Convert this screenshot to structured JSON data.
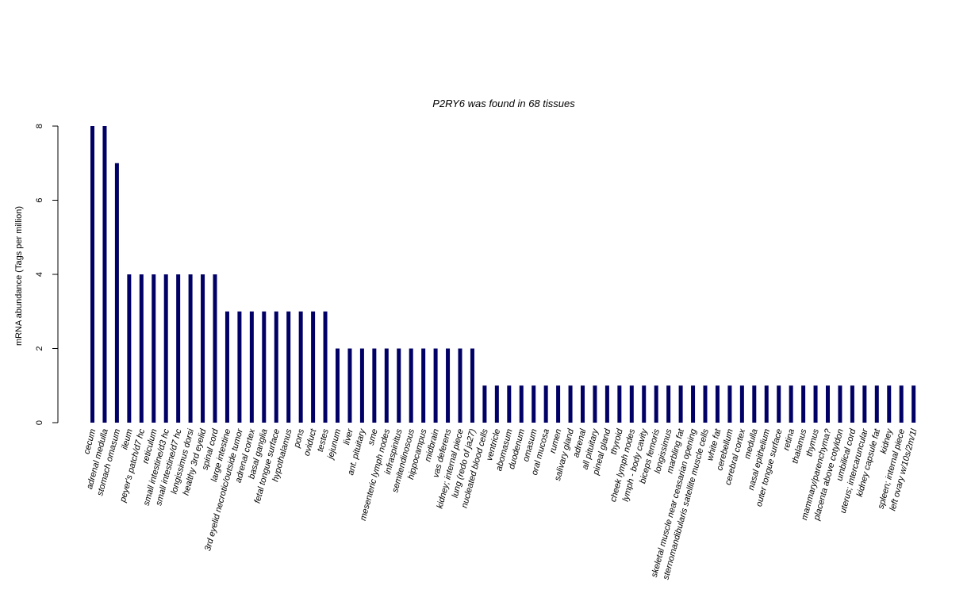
{
  "chart_data": {
    "type": "bar",
    "title": "P2RY6  was found in  68  tissues",
    "ylabel": "mRNA abundance (Tags per million)",
    "xlabel": "",
    "ylim": [
      0,
      8
    ],
    "yticks": [
      0,
      2,
      4,
      6,
      8
    ],
    "bar_color": "#000066",
    "categories": [
      "cecum",
      "adrenal medulla",
      "stomach omasum",
      "ileum",
      "peyer's patch/d7 hc",
      "reticulum",
      "small intestine/d3 hc",
      "small intestine/d7 hc",
      "longissimus dorsi",
      "healthy 3rd eyelid",
      "spinal cord",
      "large intestine",
      "3rd eyelid necrotic/outside tumor",
      "adrenal cortex",
      "basal ganglia",
      "fetal tongue surface",
      "hypothalamus",
      "pons",
      "oviduct",
      "testes",
      "jejunum",
      "liver",
      "ant. pituitary",
      "sme",
      "mesenteric lymph nodes",
      "infraspinitus",
      "semitendinosous",
      "hippocampus",
      "midbrain",
      "vas deferens",
      "kidney; internal piece",
      "lung (redo of ja27)",
      "nucleated blood cells",
      "ventricle",
      "abomasum",
      "duodenum",
      "omasum",
      "oral mucosa",
      "rumen",
      "salivary gland",
      "adrenal",
      "all pituitary",
      "pineal gland",
      "thyroid",
      "cheek lymph nodes",
      "lymph - body cavity",
      "biceps femoris",
      "longissimus",
      "marbling fat",
      "skeletal muscle near ceasarian opening",
      "sternomandibularis satellite muscle cells",
      "white fat",
      "cerebellum",
      "cerebral cortex",
      "medulla",
      "nasal epithelium",
      "outer tongue surface",
      "retina",
      "thalamus",
      "thymus",
      "mammary/parenchyma?",
      "placenta above cotyldon",
      "umbilical cord",
      "uterus; intercaruncular",
      "kidney capsule fat",
      "kidney",
      "spleen; internal piece",
      "left ovary w/10s/2m/1l"
    ],
    "values": [
      8,
      8,
      7,
      4,
      4,
      4,
      4,
      4,
      4,
      4,
      4,
      3,
      3,
      3,
      3,
      3,
      3,
      3,
      3,
      3,
      2,
      2,
      2,
      2,
      2,
      2,
      2,
      2,
      2,
      2,
      2,
      2,
      1,
      1,
      1,
      1,
      1,
      1,
      1,
      1,
      1,
      1,
      1,
      1,
      1,
      1,
      1,
      1,
      1,
      1,
      1,
      1,
      1,
      1,
      1,
      1,
      1,
      1,
      1,
      1,
      1,
      1,
      1,
      1,
      1,
      1,
      1,
      1
    ]
  }
}
